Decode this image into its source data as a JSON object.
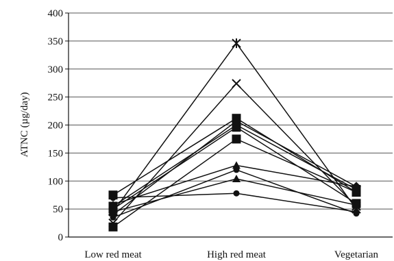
{
  "chart_data": {
    "type": "line",
    "ylabel": "ATNC (µg/day)",
    "xlabel": "",
    "title": "",
    "categories": [
      "Low red meat",
      "High red meat",
      "Vegetarian"
    ],
    "yticks": [
      0,
      50,
      100,
      150,
      200,
      250,
      300,
      350,
      400
    ],
    "ylim": [
      0,
      400
    ],
    "grid": true,
    "legend": "none",
    "line_color": "#111111",
    "series": [
      {
        "marker": "star",
        "values": [
          45,
          346,
          50
        ]
      },
      {
        "marker": "x",
        "values": [
          25,
          274,
          55
        ]
      },
      {
        "marker": "square",
        "values": [
          75,
          212,
          80
        ]
      },
      {
        "marker": "square",
        "values": [
          55,
          200,
          85
        ]
      },
      {
        "marker": "square",
        "values": [
          50,
          196,
          60
        ]
      },
      {
        "marker": "diamond",
        "values": [
          40,
          207,
          90
        ]
      },
      {
        "marker": "square",
        "values": [
          18,
          175,
          80
        ]
      },
      {
        "marker": "triangle",
        "values": [
          58,
          128,
          90
        ]
      },
      {
        "marker": "triangle",
        "values": [
          45,
          104,
          57
        ]
      },
      {
        "marker": "circle",
        "values": [
          70,
          78,
          45
        ]
      },
      {
        "marker": "circle",
        "values": [
          35,
          120,
          42
        ]
      }
    ]
  }
}
